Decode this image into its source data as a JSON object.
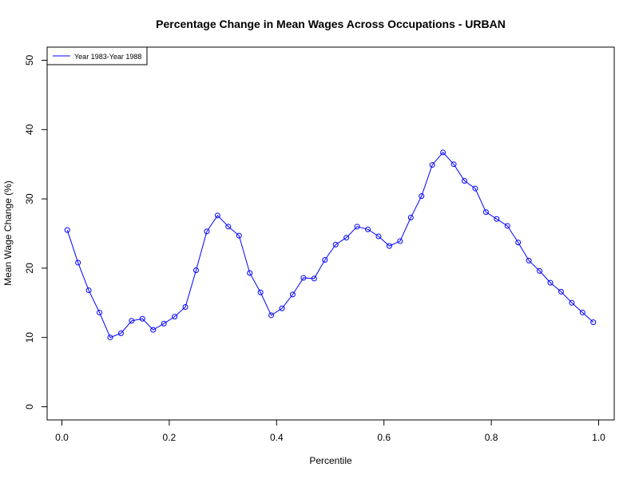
{
  "chart_data": {
    "type": "line",
    "title": "Percentage Change in Mean Wages  Across Occupations - URBAN",
    "xlabel": "Percentile",
    "ylabel": "Mean Wage Change (%)",
    "xlim": [
      0,
      1
    ],
    "ylim": [
      0,
      50
    ],
    "x_ticks": [
      "0.0",
      "0.2",
      "0.4",
      "0.6",
      "0.8",
      "1.0"
    ],
    "y_ticks": [
      "0",
      "10",
      "20",
      "30",
      "40",
      "50"
    ],
    "grid": false,
    "legend_position": "top-left",
    "color": "#0000ff",
    "series": [
      {
        "name": "Year 1983-Year 1988",
        "x": [
          0.01,
          0.03,
          0.05,
          0.07,
          0.09,
          0.11,
          0.13,
          0.15,
          0.17,
          0.19,
          0.21,
          0.23,
          0.25,
          0.27,
          0.29,
          0.31,
          0.33,
          0.35,
          0.37,
          0.39,
          0.41,
          0.43,
          0.45,
          0.47,
          0.49,
          0.51,
          0.53,
          0.55,
          0.57,
          0.59,
          0.61,
          0.63,
          0.65,
          0.67,
          0.69,
          0.71,
          0.73,
          0.75,
          0.77,
          0.79,
          0.81,
          0.83,
          0.85,
          0.87,
          0.89,
          0.91,
          0.93,
          0.95,
          0.97,
          0.99
        ],
        "y": [
          25.5,
          20.8,
          16.8,
          13.6,
          10.0,
          10.6,
          12.4,
          12.7,
          11.1,
          12.0,
          13.0,
          14.4,
          19.7,
          25.3,
          27.6,
          26.0,
          24.7,
          19.3,
          16.5,
          13.2,
          14.2,
          16.2,
          18.6,
          18.5,
          21.2,
          23.4,
          24.4,
          26.0,
          25.6,
          24.6,
          23.2,
          23.9,
          27.3,
          30.4,
          34.9,
          36.7,
          35.0,
          32.6,
          31.5,
          28.1,
          27.1,
          26.1,
          23.7,
          21.1,
          19.6,
          17.9,
          16.6,
          15.0,
          13.6,
          12.2
        ]
      }
    ]
  }
}
